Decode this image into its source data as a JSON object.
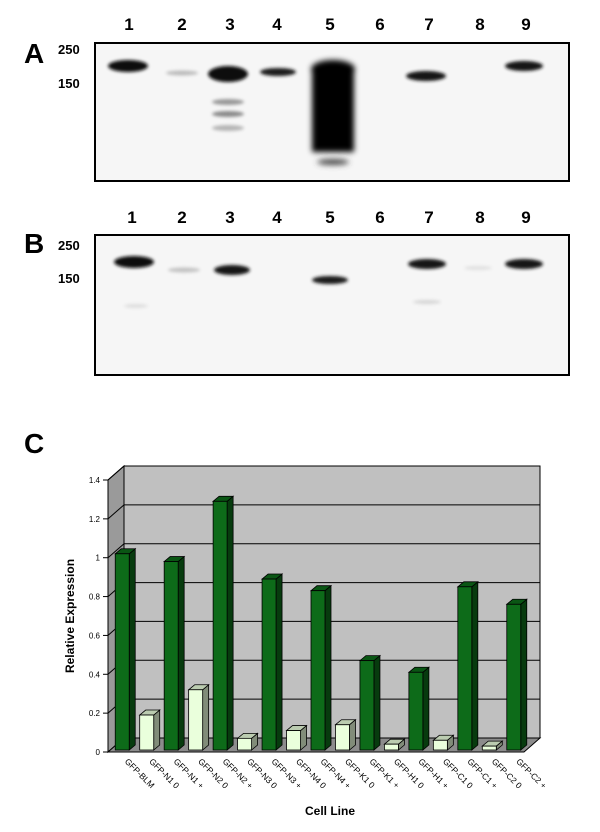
{
  "panels": {
    "a": {
      "letter": "A",
      "lanes": [
        "1",
        "2",
        "3",
        "4",
        "5",
        "6",
        "7",
        "8",
        "9"
      ],
      "mw_markers": [
        "250",
        "150"
      ]
    },
    "b": {
      "letter": "B",
      "lanes": [
        "1",
        "2",
        "3",
        "4",
        "5",
        "6",
        "7",
        "8",
        "9"
      ],
      "mw_markers": [
        "250",
        "150"
      ]
    },
    "c": {
      "letter": "C"
    }
  },
  "chart_data": {
    "type": "bar",
    "style": "3d",
    "categories": [
      "GFP-BLM",
      "GFP-N1 0",
      "GFP-N1 +",
      "GFP-N2 0",
      "GFP-N2 +",
      "GFP-N3 0",
      "GFP-N3 +",
      "GFP-N4 0",
      "GFP-N4 +",
      "GFP-K1 0",
      "GFP-K1 +",
      "GFP-H1 0",
      "GFP-H1 +",
      "GFP-C1 0",
      "GFP-C1 +",
      "GFP-C2 0",
      "GFP-C2 +"
    ],
    "values": [
      1.01,
      0.18,
      0.97,
      0.31,
      1.28,
      0.06,
      0.88,
      0.1,
      0.82,
      0.13,
      0.46,
      0.03,
      0.4,
      0.05,
      0.84,
      0.02,
      0.75
    ],
    "bar_colors": [
      "#0d6b19",
      "#eaffdc",
      "#0d6b19",
      "#eaffdc",
      "#0d6b19",
      "#eaffdc",
      "#0d6b19",
      "#eaffdc",
      "#0d6b19",
      "#eaffdc",
      "#0d6b19",
      "#eaffdc",
      "#0d6b19",
      "#eaffdc",
      "#0d6b19",
      "#eaffdc",
      "#0d6b19"
    ],
    "xlabel": "Cell Line",
    "ylabel": "Relative Expression",
    "ylim": [
      0,
      1.4
    ],
    "yticks": [
      "0",
      "0.2",
      "0.4",
      "0.6",
      "0.8",
      "1",
      "1.2",
      "1.4"
    ],
    "grid": true,
    "wall_color": "#c0c0c0"
  }
}
